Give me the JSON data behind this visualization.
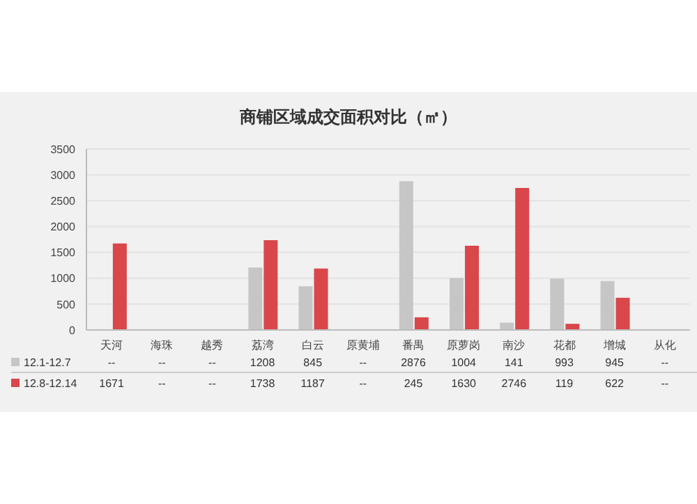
{
  "chart_data": {
    "type": "bar",
    "title": "商铺区域成交面积对比（㎡）",
    "categories": [
      "天河",
      "海珠",
      "越秀",
      "荔湾",
      "白云",
      "原黄埔",
      "番禺",
      "原萝岗",
      "南沙",
      "花都",
      "增城",
      "从化"
    ],
    "series": [
      {
        "name": "12.1-12.7",
        "color": "#c6c6c6",
        "values": [
          null,
          null,
          null,
          1208,
          845,
          null,
          2876,
          1004,
          141,
          993,
          945,
          null
        ],
        "value_labels": [
          "--",
          "--",
          "--",
          "1208",
          "845",
          "--",
          "2876",
          "1004",
          "141",
          "993",
          "945",
          "--"
        ]
      },
      {
        "name": "12.8-12.14",
        "color": "#d9474a",
        "values": [
          1671,
          null,
          null,
          1738,
          1187,
          null,
          245,
          1630,
          2746,
          119,
          622,
          null
        ],
        "value_labels": [
          "1671",
          "--",
          "--",
          "1738",
          "1187",
          "--",
          "245",
          "1630",
          "2746",
          "119",
          "622",
          "--"
        ]
      }
    ],
    "ylim": [
      0,
      3500
    ],
    "yticks": [
      0,
      500,
      1000,
      1500,
      2000,
      2500,
      3000,
      3500
    ],
    "grid": "y",
    "legend": "bottom"
  }
}
